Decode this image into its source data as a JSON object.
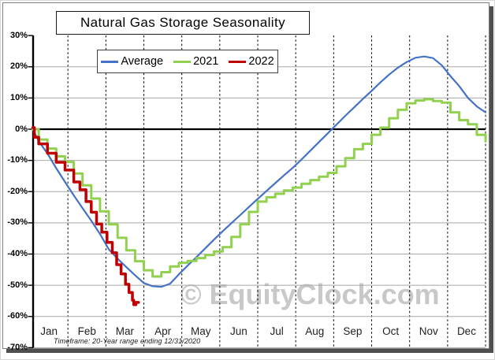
{
  "title": "Natural Gas Storage Seasonality",
  "footnote": "Timeframe: 20-Year range ending 12/31/2020",
  "watermark": "© EquityClock.com",
  "legend": [
    {
      "label": "Average",
      "color": "#4472C4"
    },
    {
      "label": "2021",
      "color": "#92D050"
    },
    {
      "label": "2022",
      "color": "#C00000"
    }
  ],
  "chart_data": {
    "type": "line",
    "title": "Natural Gas Storage Seasonality",
    "x_unit": "weeks, 0 = Jan 1 through 52 = Dec 31",
    "categories_months": [
      "Jan",
      "Feb",
      "Mar",
      "Apr",
      "May",
      "Jun",
      "Jul",
      "Aug",
      "Sep",
      "Oct",
      "Nov",
      "Dec"
    ],
    "y_ticks": [
      {
        "label": "30%",
        "value": 30
      },
      {
        "label": "20%",
        "value": 20
      },
      {
        "label": "10%",
        "value": 10
      },
      {
        "label": "0%",
        "value": 0
      },
      {
        "label": "-10%",
        "value": -10
      },
      {
        "label": "-20%",
        "value": -20
      },
      {
        "label": "-30%",
        "value": -30
      },
      {
        "label": "-40%",
        "value": -40
      },
      {
        "label": "-50%",
        "value": -50
      },
      {
        "label": "-60%",
        "value": -60
      },
      {
        "label": "-70%",
        "value": -70
      }
    ],
    "ylim": [
      -70,
      30
    ],
    "grid": {
      "horizontal": "solid gray",
      "vertical": "dashed black at month boundaries",
      "zero_line": "solid black"
    },
    "legend_position": "top inside plot",
    "series": [
      {
        "name": "Average",
        "color": "#4472C4",
        "style": "smooth",
        "width": 2.2,
        "values": [
          0,
          -3.8,
          -7.8,
          -12.5,
          -16.9,
          -21.2,
          -25.3,
          -29.3,
          -33.6,
          -38.5,
          -41.5,
          -44.2,
          -46.8,
          -49.3,
          -50.3,
          -50.5,
          -49.5,
          -46.5,
          -43.7,
          -41.0,
          -38.2,
          -35.4,
          -32.7,
          -30.1,
          -27.5,
          -24.9,
          -22.3,
          -19.8,
          -17.3,
          -14.8,
          -12.4,
          -9.7,
          -6.9,
          -4.1,
          -1.3,
          1.5,
          4.3,
          7.0,
          9.7,
          12.3,
          15.0,
          17.5,
          19.7,
          21.5,
          22.9,
          23.3,
          22.8,
          20.5,
          17.0,
          13.8,
          10.0,
          7.3,
          5.4
        ]
      },
      {
        "name": "2021",
        "color": "#92D050",
        "style": "step",
        "width": 3,
        "values": [
          0,
          -3.3,
          -6.2,
          -8.7,
          -10.5,
          -14.2,
          -18.0,
          -22.2,
          -26.3,
          -30.5,
          -34.8,
          -38.8,
          -42.3,
          -45.2,
          -47.2,
          -45.8,
          -44.0,
          -42.8,
          -42.2,
          -41.3,
          -40.3,
          -39.2,
          -37.8,
          -34.5,
          -30.5,
          -26.5,
          -23.2,
          -21.8,
          -20.7,
          -19.6,
          -18.7,
          -17.5,
          -16.3,
          -15.2,
          -14.0,
          -11.9,
          -9.3,
          -6.4,
          -4.7,
          -1.8,
          0.5,
          3.5,
          6.2,
          8.3,
          9.2,
          9.6,
          9.0,
          8.5,
          5.4,
          2.9,
          1.6,
          -1.8,
          -3.9
        ]
      },
      {
        "name": "2022",
        "color": "#C00000",
        "style": "step",
        "width": 3.5,
        "x": [
          0,
          0.5,
          1,
          2,
          3,
          4,
          5,
          5.7,
          6.4,
          7,
          7.6,
          8.2,
          8.8,
          9.4,
          9.9,
          10.4,
          10.9,
          11.3,
          11.7,
          11.85,
          12.1,
          12.4
        ],
        "values": [
          0.5,
          -2.6,
          -4.7,
          -7.7,
          -10.6,
          -13.1,
          -16.9,
          -19.4,
          -23.2,
          -26.6,
          -30.4,
          -33.0,
          -36.3,
          -39.6,
          -43.4,
          -46.4,
          -49.7,
          -52.3,
          -54.8,
          -56.2,
          -55.5,
          -55.5
        ]
      }
    ]
  }
}
